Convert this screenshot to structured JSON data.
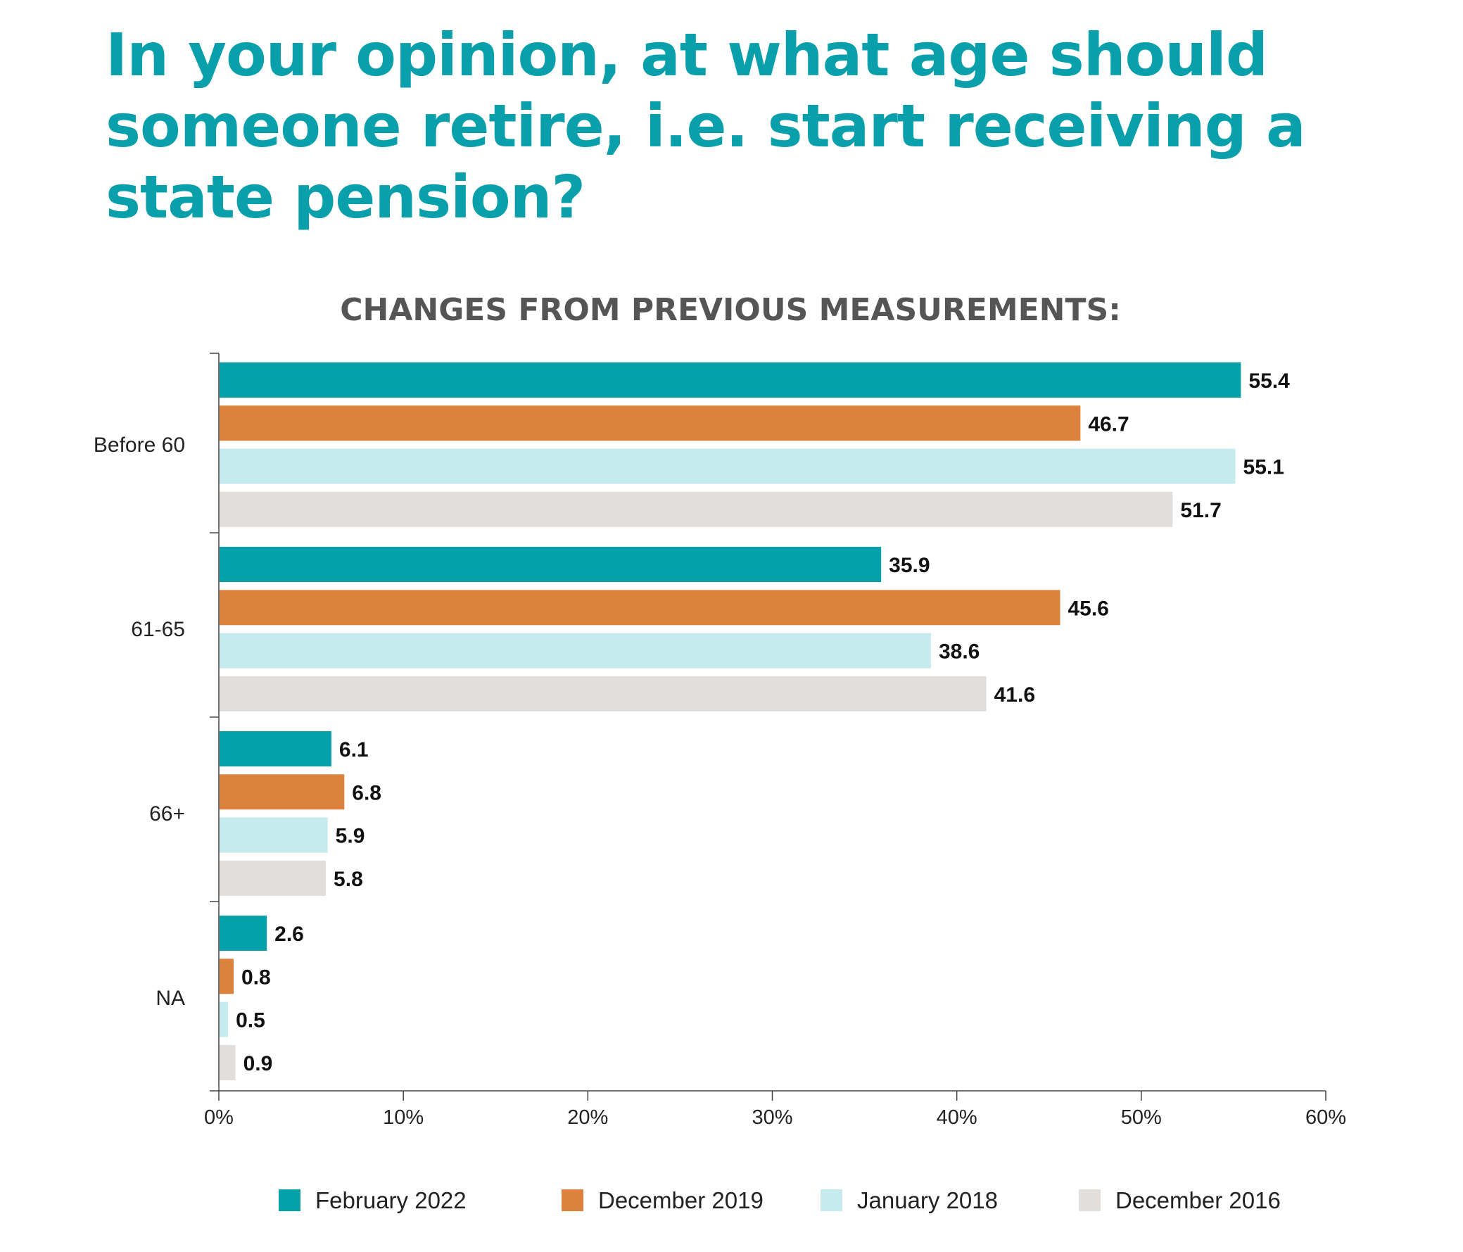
{
  "headline": "In your opinion, at what age should someone retire, i.e. start receiving a state pension?",
  "chart_data": {
    "type": "bar",
    "orientation": "horizontal",
    "title": "",
    "subtitle": "CHANGES FROM PREVIOUS MEASUREMENTS:",
    "categories": [
      "Before 60",
      "61-65",
      "66+",
      "NA"
    ],
    "series": [
      {
        "name": "February 2022",
        "color": "#04a1ab",
        "values": [
          55.4,
          35.9,
          6.1,
          2.6
        ]
      },
      {
        "name": "December 2019",
        "color": "#dc823c",
        "values": [
          46.7,
          45.6,
          6.8,
          0.8
        ]
      },
      {
        "name": "January 2018",
        "color": "#c6ebee",
        "values": [
          55.1,
          38.6,
          5.9,
          0.5
        ]
      },
      {
        "name": "December 2016",
        "color": "#e2dedb",
        "values": [
          51.7,
          41.6,
          5.8,
          0.9
        ]
      }
    ],
    "value_labels": [
      [
        "55.4",
        "35.9",
        "6.1",
        "2.6"
      ],
      [
        "46.7",
        "45.6",
        "6.8",
        "0.8"
      ],
      [
        "55.1",
        "38.6",
        "5.9",
        "0.5"
      ],
      [
        "51.7",
        "41.6",
        "5.8",
        "0.9"
      ]
    ],
    "xlim": [
      0,
      60
    ],
    "xticks": [
      0,
      10,
      20,
      30,
      40,
      50,
      60
    ],
    "xtick_labels": [
      "0%",
      "10%",
      "20%",
      "30%",
      "40%",
      "50%",
      "60%"
    ],
    "xlabel": "",
    "ylabel": "",
    "grid": false,
    "legend_position": "bottom"
  }
}
